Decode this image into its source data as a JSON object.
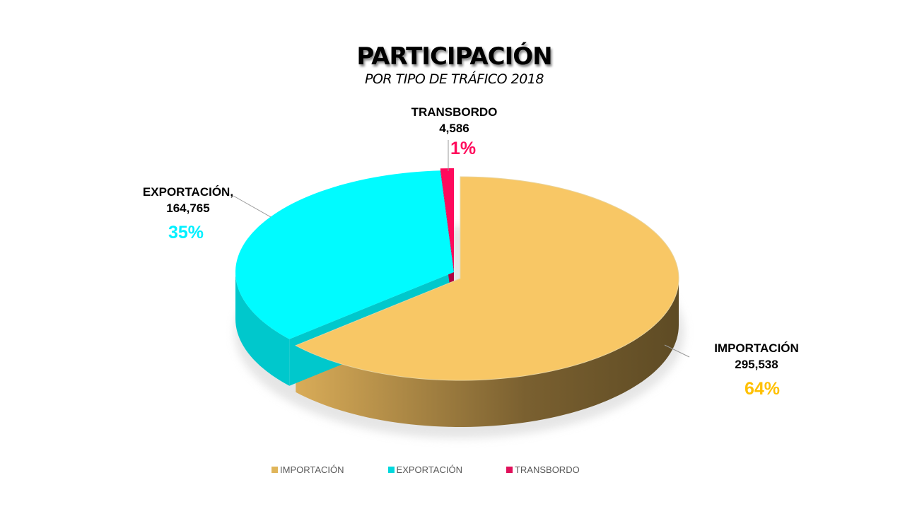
{
  "chart_data": {
    "type": "pie",
    "title": "PARTICIPACIÓN",
    "subtitle": "POR TIPO DE TRÁFICO 2018",
    "three_d": true,
    "legend_position": "bottom",
    "slices": [
      {
        "name": "IMPORTACIÓN",
        "label": "IMPORTACIÓN",
        "value": 295538,
        "value_label": "295,538",
        "percent_label": "64%",
        "color": "#F8C765",
        "side_dark": "#6A5428",
        "pct_color": "#FFC000"
      },
      {
        "name": "EXPORTACIÓN",
        "label": "EXPORTACIÓN,",
        "value": 164765,
        "value_label": "164,765",
        "percent_label": "35%",
        "color": "#00FBFF",
        "side_dark": "#00C8CC",
        "pct_color": "#00F0FF"
      },
      {
        "name": "TRANSBORDO",
        "label": "TRANSBORDO",
        "value": 4586,
        "value_label": "4,586",
        "percent_label": "1%",
        "color": "#FF0A5C",
        "side_dark": "#B00040",
        "pct_color": "#FF0A5C"
      }
    ]
  }
}
